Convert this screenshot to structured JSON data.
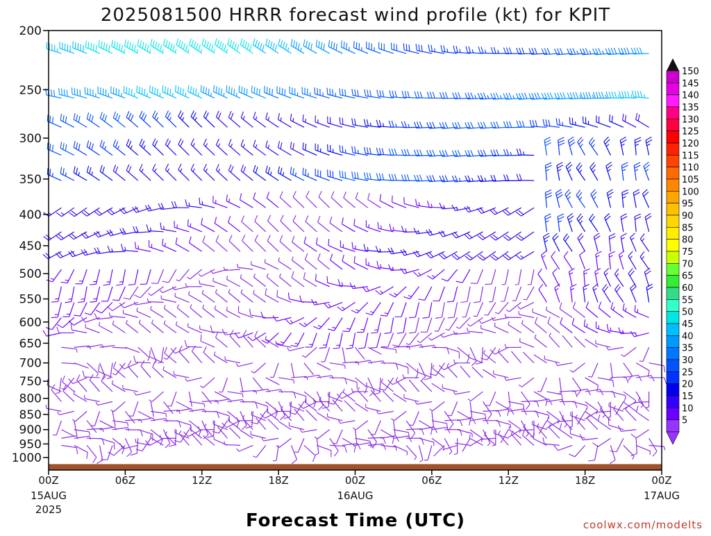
{
  "chart_data": {
    "type": "wind-barb-profile",
    "title": "2025081500 HRRR forecast wind profile (kt) for KPIT",
    "xlabel": "Forecast Time (UTC)",
    "ylabel": "",
    "credit": "coolwx.com/modelts",
    "x_ticks": [
      {
        "hour": 0,
        "label": "00Z",
        "sub1": "15AUG",
        "sub2": "2025"
      },
      {
        "hour": 6,
        "label": "06Z",
        "sub1": "",
        "sub2": ""
      },
      {
        "hour": 12,
        "label": "12Z",
        "sub1": "",
        "sub2": ""
      },
      {
        "hour": 18,
        "label": "18Z",
        "sub1": "",
        "sub2": ""
      },
      {
        "hour": 24,
        "label": "00Z",
        "sub1": "16AUG",
        "sub2": ""
      },
      {
        "hour": 30,
        "label": "06Z",
        "sub1": "",
        "sub2": ""
      },
      {
        "hour": 36,
        "label": "12Z",
        "sub1": "",
        "sub2": ""
      },
      {
        "hour": 42,
        "label": "18Z",
        "sub1": "",
        "sub2": ""
      },
      {
        "hour": 48,
        "label": "00Z",
        "sub1": "17AUG",
        "sub2": ""
      }
    ],
    "xlim": [
      0,
      48
    ],
    "y_scale": "log-pressure",
    "ylim_hpa": [
      1050,
      200
    ],
    "y_ticks": [
      "200",
      "250",
      "300",
      "350",
      "400",
      "450",
      "500",
      "550",
      "600",
      "650",
      "700",
      "750",
      "800",
      "850",
      "900",
      "950",
      "1000"
    ],
    "levels_hpa": [
      218,
      258,
      288,
      320,
      352,
      390,
      427,
      460,
      492,
      525,
      557,
      590,
      625,
      660,
      700,
      740,
      780,
      810,
      840,
      870,
      900,
      930,
      955
    ],
    "ground_color": "#a0522d",
    "ground_top_hpa": 1025,
    "colorbar": {
      "labels": [
        "150",
        "145",
        "140",
        "135",
        "130",
        "125",
        "120",
        "115",
        "110",
        "105",
        "100",
        "95",
        "90",
        "85",
        "80",
        "75",
        "70",
        "65",
        "60",
        "55",
        "50",
        "45",
        "40",
        "35",
        "30",
        "25",
        "20",
        "15",
        "10",
        "5"
      ],
      "colors": [
        "#cc00cc",
        "#e600e6",
        "#ff1aff",
        "#ff0080",
        "#ff0040",
        "#ff0000",
        "#ff2200",
        "#ff4400",
        "#ff6a00",
        "#ff8800",
        "#ffa500",
        "#ffc000",
        "#ffd700",
        "#ffee00",
        "#ffff00",
        "#ccff00",
        "#66ff33",
        "#33ee33",
        "#33dd88",
        "#33ffcc",
        "#00e6e6",
        "#00bfff",
        "#0099ff",
        "#0077ff",
        "#0055ff",
        "#0033ff",
        "#0000ee",
        "#3300ff",
        "#6a00ff",
        "#9933ff"
      ],
      "bottom_color": "#9933ff",
      "top_color": "#111111"
    },
    "wind_field_notes": "Barbs every hour at each level; upper levels west-northwest 25-60 kt (blue/cyan), lower levels light and variable 5-15 kt (purple)."
  }
}
